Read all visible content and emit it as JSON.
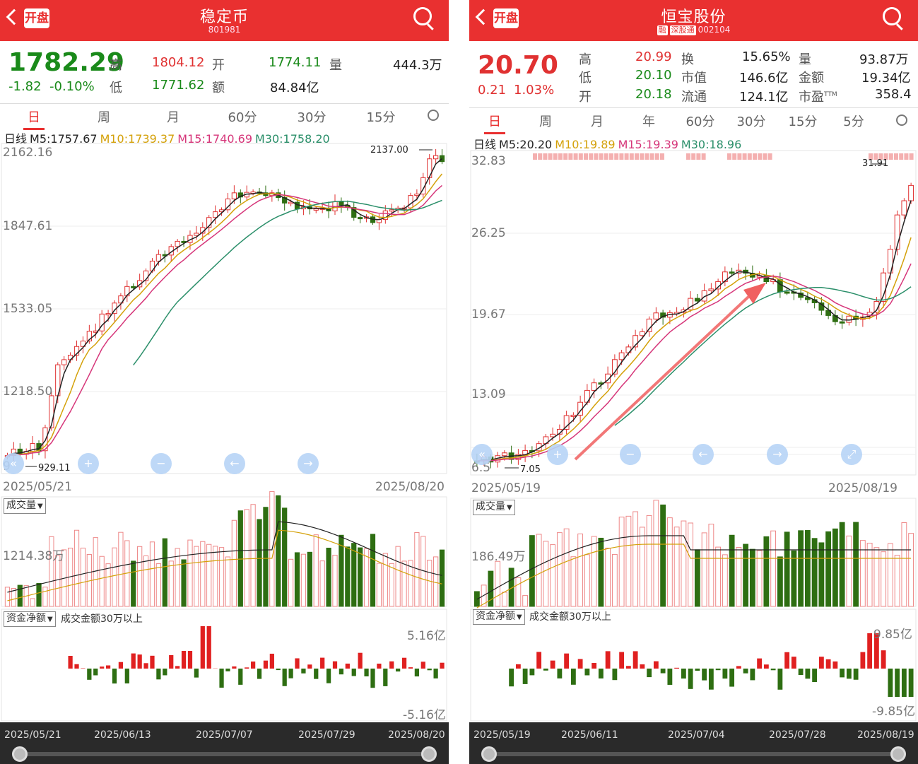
{
  "left": {
    "title": "稳定币",
    "code": "801981",
    "price": "1782.29",
    "chg": "-1.82",
    "pct": "-0.10%",
    "q": {
      "high_l": "高",
      "high": "1804.12",
      "open_l": "开",
      "open": "1774.11",
      "vol_l": "量",
      "vol": "444.3万",
      "low_l": "低",
      "low": "1771.62",
      "amt_l": "额",
      "amt": "84.84亿"
    },
    "tabs": [
      "日",
      "周",
      "月",
      "60分",
      "30分",
      "15分"
    ],
    "ma": {
      "k": "日线",
      "m5": "M5:1757.67",
      "m10": "M10:1739.37",
      "m15": "M15:1740.69",
      "m30": "M30:1758.20"
    },
    "yaxis": [
      "2162.16",
      "1847.61",
      "1533.05",
      "1218.50",
      "9"
    ],
    "maxmark": "2137.00",
    "minmark": "929.11",
    "d0": "2025/05/21",
    "d1": "2025/08/20",
    "vol_dd": "成交量",
    "vol_axis": "1214.38万",
    "flow_dd": "资金净额",
    "flow_note": "成交金额30万以上",
    "flow_top": "5.16亿",
    "flow_bot": "-5.16亿",
    "bot_dates": [
      "2025/05/21",
      "2025/06/13",
      "2025/07/07",
      "2025/07/29",
      "2025/08/20"
    ]
  },
  "right": {
    "title": "恒宝股份",
    "badge1": "融",
    "badge2": "深股通",
    "code": "002104",
    "price": "20.70",
    "chg": "0.21",
    "pct": "1.03%",
    "q": {
      "h_l": "高",
      "h": "20.99",
      "d_l": "低",
      "d": "20.10",
      "o_l": "开",
      "o": "20.18",
      "hs_l": "换",
      "hs": "15.65%",
      "sz_l": "市值",
      "sz": "146.6亿",
      "lt_l": "流通",
      "lt": "124.1亿",
      "l_l": "量",
      "l": "93.87万",
      "je_l": "金额",
      "je": "19.34亿",
      "sy_l": "市盈",
      "sy_sup": "TTM",
      "sy": "358.4"
    },
    "tabs": [
      "日",
      "周",
      "月",
      "年",
      "60分",
      "30分",
      "15分",
      "5分"
    ],
    "ma": {
      "k": "日线",
      "m5": "M5:20.20",
      "m10": "M10:19.89",
      "m15": "M15:19.39",
      "m30": "M30:18.96"
    },
    "yaxis": [
      "32.83",
      "26.25",
      "19.67",
      "13.09",
      "6.5"
    ],
    "maxmark": "31.91",
    "minmark": "7.05",
    "d0": "2025/05/19",
    "d1": "2025/08/19",
    "vol_dd": "成交量",
    "vol_axis": "186.49万",
    "flow_dd": "资金净额",
    "flow_note": "成交金额30万以上",
    "flow_top": "9.85亿",
    "flow_bot": "-9.85亿",
    "bot_dates": [
      "2025/05/19",
      "2025/06/11",
      "2025/07/04",
      "2025/07/28",
      "2025/08/19"
    ]
  },
  "colors": {
    "up": "#e03131",
    "down": "#2e6e12",
    "m5": "#222",
    "m10": "#d4a10a",
    "m15": "#d6367a",
    "m30": "#2b8f6a",
    "header": "#e93030"
  }
}
